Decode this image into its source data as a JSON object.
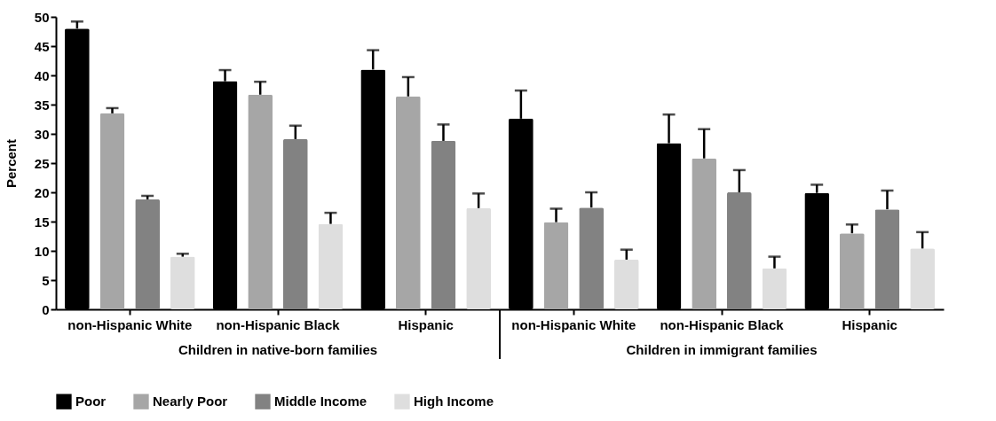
{
  "chart_data": {
    "type": "bar",
    "ylabel": "Percent",
    "categories": [
      "non-Hispanic White",
      "non-Hispanic Black",
      "Hispanic",
      "non-Hispanic White",
      "non-Hispanic Black",
      "Hispanic"
    ],
    "series": [
      {
        "name": "Poor",
        "color": "#000000",
        "values": [
          48.0,
          39.0,
          41.0,
          32.6,
          28.4,
          19.9
        ],
        "errors": [
          [
            48.0,
            49.2
          ],
          [
            39.0,
            40.9
          ],
          [
            41.0,
            44.3
          ],
          [
            32.6,
            37.4
          ],
          [
            28.4,
            33.3
          ],
          [
            19.9,
            21.3
          ]
        ]
      },
      {
        "name": "Nearly Poor",
        "color": "#a6a6a6",
        "values": [
          33.5,
          36.7,
          36.4,
          14.9,
          25.8,
          13.0
        ],
        "errors": [
          [
            33.5,
            34.4
          ],
          [
            36.7,
            38.9
          ],
          [
            36.4,
            39.7
          ],
          [
            14.9,
            17.2
          ],
          [
            25.8,
            30.8
          ],
          [
            13.0,
            14.5
          ]
        ]
      },
      {
        "name": "Middle Income",
        "color": "#828282",
        "values": [
          18.8,
          29.1,
          28.8,
          17.4,
          20.0,
          17.1
        ],
        "errors": [
          [
            18.8,
            19.4
          ],
          [
            29.1,
            31.4
          ],
          [
            28.8,
            31.6
          ],
          [
            17.4,
            20.0
          ],
          [
            20.0,
            23.8
          ],
          [
            17.1,
            20.3
          ]
        ]
      },
      {
        "name": "High Income",
        "color": "#dedede",
        "values": [
          9.0,
          14.6,
          17.3,
          8.5,
          7.0,
          10.4
        ],
        "errors": [
          [
            9.0,
            9.5
          ],
          [
            14.6,
            16.5
          ],
          [
            17.3,
            19.8
          ],
          [
            8.5,
            10.2
          ],
          [
            7.0,
            9.0
          ],
          [
            10.4,
            13.2
          ]
        ]
      }
    ],
    "ylim": [
      0,
      50
    ],
    "yticks": [
      0,
      5,
      10,
      15,
      20,
      25,
      30,
      35,
      40,
      45,
      50
    ],
    "grid": false,
    "legend": "bottom",
    "annotations": [
      "Children in native-born families",
      "Children in immigrant families"
    ]
  }
}
